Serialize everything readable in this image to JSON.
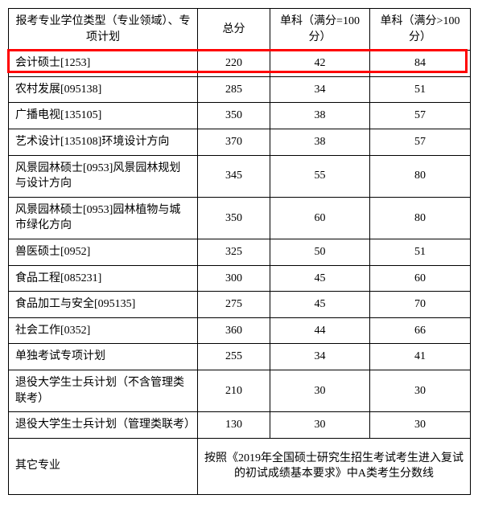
{
  "table": {
    "headers": {
      "name": "报考专业学位类型（专业领域）、专项计划",
      "total": "总分",
      "subject1": "单科（满分=100分）",
      "subject2": "单科（满分>100分）"
    },
    "highlight_color": "#ff0000",
    "border_color": "#000000",
    "background_color": "#ffffff",
    "font_size": 14,
    "rows": [
      {
        "name": "会计硕士[1253]",
        "total": "220",
        "s1": "42",
        "s2": "84",
        "highlighted": true
      },
      {
        "name": "农村发展[095138]",
        "total": "285",
        "s1": "34",
        "s2": "51"
      },
      {
        "name": "广播电视[135105]",
        "total": "350",
        "s1": "38",
        "s2": "57"
      },
      {
        "name": "艺术设计[135108]环境设计方向",
        "total": "370",
        "s1": "38",
        "s2": "57"
      },
      {
        "name": "风景园林硕士[0953]风景园林规划与设计方向",
        "total": "345",
        "s1": "55",
        "s2": "80"
      },
      {
        "name": "风景园林硕士[0953]园林植物与城市绿化方向",
        "total": "350",
        "s1": "60",
        "s2": "80"
      },
      {
        "name": "兽医硕士[0952]",
        "total": "325",
        "s1": "50",
        "s2": "51"
      },
      {
        "name": "食品工程[085231]",
        "total": "300",
        "s1": "45",
        "s2": "60"
      },
      {
        "name": "食品加工与安全[095135]",
        "total": "275",
        "s1": "45",
        "s2": "70"
      },
      {
        "name": "社会工作[0352]",
        "total": "360",
        "s1": "44",
        "s2": "66"
      },
      {
        "name": "单独考试专项计划",
        "total": "255",
        "s1": "34",
        "s2": "41"
      },
      {
        "name": "退役大学生士兵计划（不含管理类联考）",
        "total": "210",
        "s1": "30",
        "s2": "30"
      },
      {
        "name": "退役大学生士兵计划（管理类联考）",
        "total": "130",
        "s1": "30",
        "s2": "30"
      }
    ],
    "other_row": {
      "name": "其它专业",
      "note": "按照《2019年全国硕士研究生招生考试考生进入复试的初试成绩基本要求》中A类考生分数线"
    },
    "column_widths": {
      "name": 235,
      "total": 90,
      "s1": 124,
      "s2": 125
    }
  }
}
